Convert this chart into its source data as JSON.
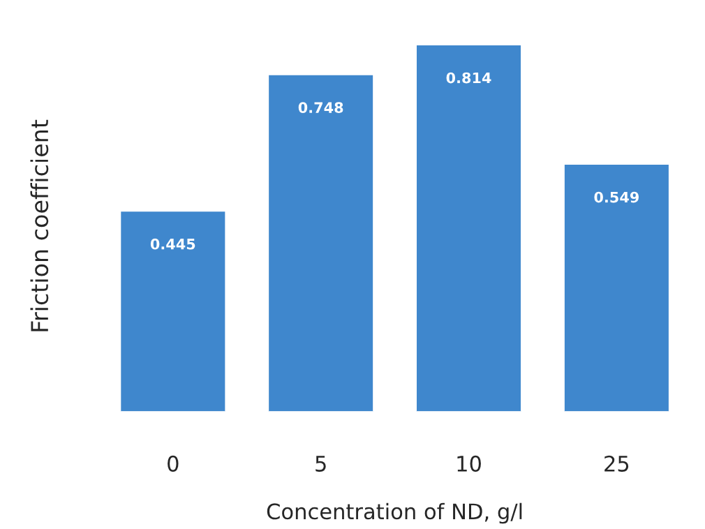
{
  "chart_data": {
    "type": "bar",
    "xlabel": "Concentration of ND, g/l",
    "ylabel": "Friction coefficient",
    "categories": [
      "0",
      "5",
      "10",
      "25"
    ],
    "values": [
      0.445,
      0.748,
      0.814,
      0.549
    ],
    "color": "#3f87cd",
    "data_labels": true,
    "grid": false,
    "legend": false
  }
}
